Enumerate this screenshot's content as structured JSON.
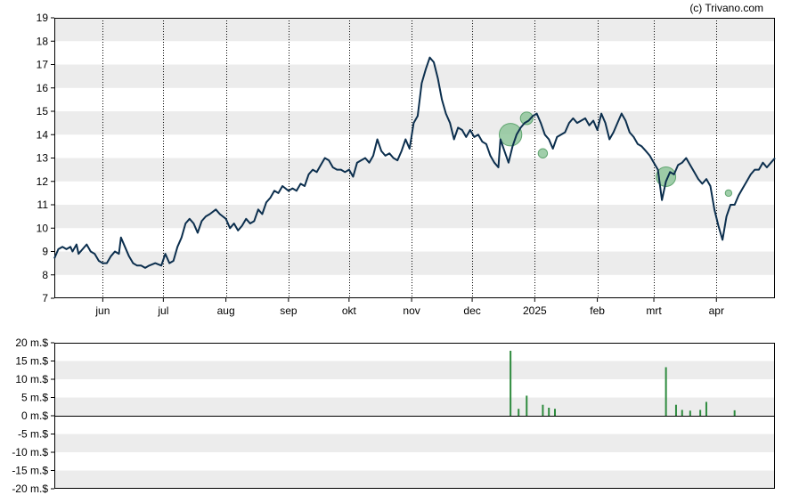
{
  "credit": "(c) Trivano.com",
  "colors": {
    "band": "#ececec",
    "price_line": "#0c2f4e",
    "bubble_fill": "#8fc59b",
    "bubble_stroke": "#5fa56f",
    "volume_bar": "#2e8b3e"
  },
  "chart_data": [
    {
      "type": "line",
      "name": "price",
      "ylim": [
        7,
        19
      ],
      "y_ticks": [
        "7",
        "8",
        "9",
        "10",
        "11",
        "12",
        "13",
        "14",
        "15",
        "16",
        "17",
        "18",
        "19"
      ],
      "x_domain": [
        "2024-05-08",
        "2025-04-30"
      ],
      "x_ticks": [
        {
          "label": "jun",
          "date": "2024-06-01"
        },
        {
          "label": "jul",
          "date": "2024-07-01"
        },
        {
          "label": "aug",
          "date": "2024-08-01"
        },
        {
          "label": "sep",
          "date": "2024-09-01"
        },
        {
          "label": "okt",
          "date": "2024-10-01"
        },
        {
          "label": "nov",
          "date": "2024-11-01"
        },
        {
          "label": "dec",
          "date": "2024-12-01"
        },
        {
          "label": "2025",
          "date": "2025-01-01"
        },
        {
          "label": "feb",
          "date": "2025-02-01"
        },
        {
          "label": "mrt",
          "date": "2025-03-01"
        },
        {
          "label": "apr",
          "date": "2025-04-01"
        }
      ],
      "vertical_gridlines": "dotted",
      "series": [
        {
          "points": [
            [
              "2024-05-08",
              8.7
            ],
            [
              "2024-05-10",
              9.1
            ],
            [
              "2024-05-12",
              9.2
            ],
            [
              "2024-05-14",
              9.1
            ],
            [
              "2024-05-16",
              9.2
            ],
            [
              "2024-05-17",
              9.0
            ],
            [
              "2024-05-19",
              9.3
            ],
            [
              "2024-05-20",
              8.9
            ],
            [
              "2024-05-22",
              9.1
            ],
            [
              "2024-05-24",
              9.3
            ],
            [
              "2024-05-26",
              9.0
            ],
            [
              "2024-05-28",
              8.9
            ],
            [
              "2024-05-30",
              8.6
            ],
            [
              "2024-06-01",
              8.5
            ],
            [
              "2024-06-03",
              8.5
            ],
            [
              "2024-06-05",
              8.8
            ],
            [
              "2024-06-07",
              9.0
            ],
            [
              "2024-06-09",
              8.9
            ],
            [
              "2024-06-10",
              9.6
            ],
            [
              "2024-06-12",
              9.2
            ],
            [
              "2024-06-14",
              8.8
            ],
            [
              "2024-06-16",
              8.5
            ],
            [
              "2024-06-18",
              8.4
            ],
            [
              "2024-06-20",
              8.4
            ],
            [
              "2024-06-22",
              8.3
            ],
            [
              "2024-06-24",
              8.4
            ],
            [
              "2024-06-27",
              8.5
            ],
            [
              "2024-06-30",
              8.4
            ],
            [
              "2024-07-02",
              8.9
            ],
            [
              "2024-07-04",
              8.5
            ],
            [
              "2024-07-06",
              8.6
            ],
            [
              "2024-07-08",
              9.2
            ],
            [
              "2024-07-10",
              9.6
            ],
            [
              "2024-07-12",
              10.2
            ],
            [
              "2024-07-14",
              10.4
            ],
            [
              "2024-07-16",
              10.2
            ],
            [
              "2024-07-18",
              9.8
            ],
            [
              "2024-07-20",
              10.3
            ],
            [
              "2024-07-22",
              10.5
            ],
            [
              "2024-07-24",
              10.6
            ],
            [
              "2024-07-27",
              10.8
            ],
            [
              "2024-07-29",
              10.6
            ],
            [
              "2024-08-01",
              10.4
            ],
            [
              "2024-08-03",
              10.0
            ],
            [
              "2024-08-05",
              10.2
            ],
            [
              "2024-08-07",
              9.9
            ],
            [
              "2024-08-09",
              10.1
            ],
            [
              "2024-08-11",
              10.4
            ],
            [
              "2024-08-13",
              10.2
            ],
            [
              "2024-08-15",
              10.3
            ],
            [
              "2024-08-17",
              10.8
            ],
            [
              "2024-08-19",
              10.6
            ],
            [
              "2024-08-21",
              11.1
            ],
            [
              "2024-08-23",
              11.3
            ],
            [
              "2024-08-25",
              11.6
            ],
            [
              "2024-08-27",
              11.5
            ],
            [
              "2024-08-29",
              11.8
            ],
            [
              "2024-09-01",
              11.6
            ],
            [
              "2024-09-03",
              11.7
            ],
            [
              "2024-09-05",
              11.6
            ],
            [
              "2024-09-07",
              11.9
            ],
            [
              "2024-09-09",
              11.8
            ],
            [
              "2024-09-11",
              12.3
            ],
            [
              "2024-09-13",
              12.5
            ],
            [
              "2024-09-15",
              12.4
            ],
            [
              "2024-09-17",
              12.7
            ],
            [
              "2024-09-19",
              13.0
            ],
            [
              "2024-09-21",
              12.9
            ],
            [
              "2024-09-23",
              12.6
            ],
            [
              "2024-09-25",
              12.5
            ],
            [
              "2024-09-27",
              12.5
            ],
            [
              "2024-09-29",
              12.4
            ],
            [
              "2024-10-01",
              12.5
            ],
            [
              "2024-10-03",
              12.2
            ],
            [
              "2024-10-05",
              12.8
            ],
            [
              "2024-10-07",
              12.9
            ],
            [
              "2024-10-09",
              13.0
            ],
            [
              "2024-10-11",
              12.8
            ],
            [
              "2024-10-13",
              13.1
            ],
            [
              "2024-10-15",
              13.8
            ],
            [
              "2024-10-17",
              13.3
            ],
            [
              "2024-10-19",
              13.1
            ],
            [
              "2024-10-21",
              13.2
            ],
            [
              "2024-10-23",
              13.0
            ],
            [
              "2024-10-25",
              12.9
            ],
            [
              "2024-10-27",
              13.3
            ],
            [
              "2024-10-29",
              13.8
            ],
            [
              "2024-10-31",
              13.4
            ],
            [
              "2024-11-02",
              14.5
            ],
            [
              "2024-11-04",
              14.8
            ],
            [
              "2024-11-06",
              16.2
            ],
            [
              "2024-11-08",
              16.8
            ],
            [
              "2024-11-10",
              17.3
            ],
            [
              "2024-11-12",
              17.1
            ],
            [
              "2024-11-14",
              16.4
            ],
            [
              "2024-11-16",
              15.5
            ],
            [
              "2024-11-18",
              14.9
            ],
            [
              "2024-11-20",
              14.5
            ],
            [
              "2024-11-22",
              13.8
            ],
            [
              "2024-11-24",
              14.3
            ],
            [
              "2024-11-26",
              14.2
            ],
            [
              "2024-11-28",
              13.9
            ],
            [
              "2024-11-30",
              14.2
            ],
            [
              "2024-12-02",
              13.9
            ],
            [
              "2024-12-04",
              14.0
            ],
            [
              "2024-12-06",
              13.7
            ],
            [
              "2024-12-08",
              13.6
            ],
            [
              "2024-12-10",
              13.1
            ],
            [
              "2024-12-12",
              12.8
            ],
            [
              "2024-12-14",
              12.6
            ],
            [
              "2024-12-15",
              13.8
            ],
            [
              "2024-12-17",
              13.3
            ],
            [
              "2024-12-19",
              12.8
            ],
            [
              "2024-12-21",
              13.5
            ],
            [
              "2024-12-23",
              14.0
            ],
            [
              "2024-12-25",
              14.3
            ],
            [
              "2024-12-27",
              14.5
            ],
            [
              "2024-12-29",
              14.6
            ],
            [
              "2024-12-31",
              14.8
            ],
            [
              "2025-01-02",
              14.9
            ],
            [
              "2025-01-04",
              14.5
            ],
            [
              "2025-01-06",
              14.0
            ],
            [
              "2025-01-08",
              13.8
            ],
            [
              "2025-01-10",
              13.4
            ],
            [
              "2025-01-12",
              13.9
            ],
            [
              "2025-01-14",
              14.0
            ],
            [
              "2025-01-16",
              14.1
            ],
            [
              "2025-01-18",
              14.5
            ],
            [
              "2025-01-20",
              14.7
            ],
            [
              "2025-01-22",
              14.5
            ],
            [
              "2025-01-24",
              14.6
            ],
            [
              "2025-01-26",
              14.7
            ],
            [
              "2025-01-28",
              14.4
            ],
            [
              "2025-01-30",
              14.6
            ],
            [
              "2025-02-01",
              14.2
            ],
            [
              "2025-02-03",
              14.9
            ],
            [
              "2025-02-05",
              14.5
            ],
            [
              "2025-02-07",
              13.8
            ],
            [
              "2025-02-09",
              14.1
            ],
            [
              "2025-02-11",
              14.5
            ],
            [
              "2025-02-13",
              14.9
            ],
            [
              "2025-02-15",
              14.6
            ],
            [
              "2025-02-17",
              14.1
            ],
            [
              "2025-02-19",
              13.9
            ],
            [
              "2025-02-21",
              13.6
            ],
            [
              "2025-02-23",
              13.5
            ],
            [
              "2025-02-25",
              13.3
            ],
            [
              "2025-02-27",
              13.1
            ],
            [
              "2025-03-01",
              12.8
            ],
            [
              "2025-03-03",
              12.5
            ],
            [
              "2025-03-05",
              11.2
            ],
            [
              "2025-03-07",
              12.0
            ],
            [
              "2025-03-09",
              12.4
            ],
            [
              "2025-03-11",
              12.3
            ],
            [
              "2025-03-13",
              12.7
            ],
            [
              "2025-03-15",
              12.8
            ],
            [
              "2025-03-17",
              13.0
            ],
            [
              "2025-03-19",
              12.7
            ],
            [
              "2025-03-21",
              12.4
            ],
            [
              "2025-03-23",
              12.1
            ],
            [
              "2025-03-25",
              11.9
            ],
            [
              "2025-03-27",
              12.1
            ],
            [
              "2025-03-29",
              11.8
            ],
            [
              "2025-03-31",
              10.8
            ],
            [
              "2025-04-02",
              10.1
            ],
            [
              "2025-04-04",
              9.5
            ],
            [
              "2025-04-06",
              10.5
            ],
            [
              "2025-04-08",
              11.0
            ],
            [
              "2025-04-10",
              11.0
            ],
            [
              "2025-04-12",
              11.4
            ],
            [
              "2025-04-14",
              11.7
            ],
            [
              "2025-04-16",
              12.0
            ],
            [
              "2025-04-18",
              12.3
            ],
            [
              "2025-04-20",
              12.5
            ],
            [
              "2025-04-22",
              12.5
            ],
            [
              "2025-04-24",
              12.8
            ],
            [
              "2025-04-26",
              12.6
            ],
            [
              "2025-04-28",
              12.8
            ],
            [
              "2025-04-30",
              13.0
            ]
          ]
        }
      ],
      "bubbles": [
        {
          "date": "2024-12-20",
          "y": 14.0,
          "size": 17.8
        },
        {
          "date": "2024-12-28",
          "y": 14.7,
          "size": 5.5
        },
        {
          "date": "2025-01-05",
          "y": 13.2,
          "size": 3.0
        },
        {
          "date": "2025-03-07",
          "y": 12.2,
          "size": 13.3
        },
        {
          "date": "2025-04-07",
          "y": 11.5,
          "size": 1.5
        }
      ]
    },
    {
      "type": "bar",
      "name": "volume",
      "ylim": [
        -20,
        20
      ],
      "y_ticks": [
        "20 m.$",
        "15 m.$",
        "10 m.$",
        "5 m.$",
        "0 m.$",
        "-5 m.$",
        "-10 m.$",
        "-15 m.$",
        "-20 m.$"
      ],
      "bars": [
        {
          "date": "2024-12-20",
          "value": 17.8
        },
        {
          "date": "2024-12-24",
          "value": 1.9
        },
        {
          "date": "2024-12-28",
          "value": 5.5
        },
        {
          "date": "2025-01-05",
          "value": 3.0
        },
        {
          "date": "2025-01-08",
          "value": 2.2
        },
        {
          "date": "2025-01-11",
          "value": 1.9
        },
        {
          "date": "2025-03-07",
          "value": 13.3
        },
        {
          "date": "2025-03-12",
          "value": 3.0
        },
        {
          "date": "2025-03-15",
          "value": 1.6
        },
        {
          "date": "2025-03-19",
          "value": 1.4
        },
        {
          "date": "2025-03-24",
          "value": 1.6
        },
        {
          "date": "2025-03-27",
          "value": 3.8
        },
        {
          "date": "2025-04-10",
          "value": 1.5
        }
      ]
    }
  ]
}
